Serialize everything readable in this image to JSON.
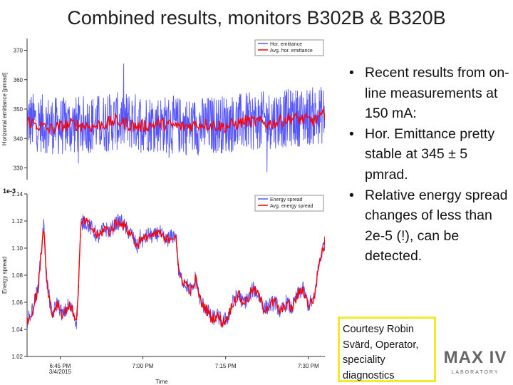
{
  "slide": {
    "title": "Combined results, monitors B302B & B320B",
    "bullets": [
      "Recent results from on-line measurements at 150 mA:",
      "Hor. Emittance pretty stable at 345 ± 5 pmrad.",
      "Relative energy spread changes of less than 2e-5 (!), can be detected."
    ],
    "courtesy": "Courtesy Robin Svärd, Operator, speciality diagnostics",
    "logo": {
      "text": "MAX IV",
      "sub": "LABORATORY",
      "color": "#666666"
    }
  },
  "chart_data": [
    {
      "type": "line",
      "ylabel": "Horizontal emittance [pmrad]",
      "xlabel": "",
      "ylim": [
        326,
        374
      ],
      "y_ticks": [
        "330",
        "340",
        "350",
        "360",
        "370"
      ],
      "x_range_minutes": [
        0,
        54
      ],
      "legend_position": "top-right",
      "series": [
        {
          "name": "Hor. emittance",
          "color": "#5555ff",
          "mean": 345,
          "noise_halfwidth": 10,
          "points": [
            [
              0,
              346
            ],
            [
              6,
              344
            ],
            [
              12,
              345
            ],
            [
              18,
              346
            ],
            [
              24,
              345
            ],
            [
              30,
              344
            ],
            [
              36,
              345
            ],
            [
              42,
              346
            ],
            [
              48,
              347
            ],
            [
              54,
              348
            ]
          ]
        },
        {
          "name": "Avg. hor. emittance",
          "color": "#ff0000",
          "points": [
            [
              0,
              346
            ],
            [
              4,
              343
            ],
            [
              8,
              345
            ],
            [
              12,
              344
            ],
            [
              16,
              346
            ],
            [
              20,
              344
            ],
            [
              24,
              345
            ],
            [
              28,
              344
            ],
            [
              32,
              345
            ],
            [
              36,
              344
            ],
            [
              40,
              346
            ],
            [
              44,
              345
            ],
            [
              48,
              347
            ],
            [
              52,
              346
            ],
            [
              54,
              348
            ]
          ]
        }
      ]
    },
    {
      "type": "line",
      "ylabel": "Energy spread",
      "xlabel": "Time",
      "multiplier": "1e-3",
      "ylim": [
        1.02,
        1.14
      ],
      "y_ticks": [
        "1.02",
        "1.04",
        "1.06",
        "1.08",
        "1.10",
        "1.12",
        "1.14"
      ],
      "x_ticks": [
        {
          "minute": 6,
          "lines": [
            "6:45 PM",
            "3/4/2015"
          ]
        },
        {
          "minute": 21,
          "lines": [
            "7:00 PM"
          ]
        },
        {
          "minute": 36,
          "lines": [
            "7:15 PM"
          ]
        },
        {
          "minute": 51,
          "lines": [
            "7:30 PM"
          ]
        }
      ],
      "legend_position": "top-right",
      "series": [
        {
          "name": "Energy spread",
          "color": "#5555ff",
          "points": [
            [
              0,
              1.045
            ],
            [
              1,
              1.055
            ],
            [
              2,
              1.07
            ],
            [
              3,
              1.118
            ],
            [
              3.6,
              1.075
            ],
            [
              4.5,
              1.05
            ],
            [
              5.5,
              1.06
            ],
            [
              6.5,
              1.05
            ],
            [
              7.5,
              1.058
            ],
            [
              8.5,
              1.052
            ],
            [
              9,
              1.045
            ],
            [
              9.8,
              1.118
            ],
            [
              10.5,
              1.12
            ],
            [
              12,
              1.113
            ],
            [
              13,
              1.108
            ],
            [
              14,
              1.115
            ],
            [
              15,
              1.112
            ],
            [
              16,
              1.118
            ],
            [
              17,
              1.12
            ],
            [
              18,
              1.114
            ],
            [
              19,
              1.11
            ],
            [
              20,
              1.1
            ],
            [
              20.5,
              1.108
            ],
            [
              21,
              1.105
            ],
            [
              22,
              1.11
            ],
            [
              23,
              1.108
            ],
            [
              24,
              1.112
            ],
            [
              25,
              1.105
            ],
            [
              26,
              1.108
            ],
            [
              27,
              1.11
            ],
            [
              27.5,
              1.08
            ],
            [
              28.5,
              1.075
            ],
            [
              29.5,
              1.07
            ],
            [
              30,
              1.068
            ],
            [
              30.5,
              1.078
            ],
            [
              31.5,
              1.06
            ],
            [
              32.5,
              1.055
            ],
            [
              33.5,
              1.048
            ],
            [
              34.5,
              1.05
            ],
            [
              35.5,
              1.045
            ],
            [
              36.5,
              1.05
            ],
            [
              37.5,
              1.062
            ],
            [
              38.5,
              1.065
            ],
            [
              39,
              1.06
            ],
            [
              40,
              1.062
            ],
            [
              41,
              1.07
            ],
            [
              42,
              1.065
            ],
            [
              43,
              1.055
            ],
            [
              44,
              1.058
            ],
            [
              45,
              1.06
            ],
            [
              46,
              1.052
            ],
            [
              47,
              1.06
            ],
            [
              48,
              1.055
            ],
            [
              49,
              1.065
            ],
            [
              50,
              1.07
            ],
            [
              51,
              1.058
            ],
            [
              52,
              1.062
            ],
            [
              53,
              1.09
            ],
            [
              54,
              1.105
            ]
          ]
        },
        {
          "name": "Avg. energy spread",
          "color": "#ff0000",
          "points": [
            [
              0,
              1.045
            ],
            [
              1,
              1.055
            ],
            [
              2,
              1.07
            ],
            [
              3,
              1.118
            ],
            [
              3.6,
              1.075
            ],
            [
              4.5,
              1.05
            ],
            [
              5.5,
              1.06
            ],
            [
              6.5,
              1.05
            ],
            [
              7.5,
              1.058
            ],
            [
              8.5,
              1.052
            ],
            [
              9,
              1.045
            ],
            [
              9.8,
              1.118
            ],
            [
              10.5,
              1.12
            ],
            [
              12,
              1.113
            ],
            [
              13,
              1.108
            ],
            [
              14,
              1.115
            ],
            [
              15,
              1.112
            ],
            [
              16,
              1.118
            ],
            [
              17,
              1.12
            ],
            [
              18,
              1.114
            ],
            [
              19,
              1.11
            ],
            [
              20,
              1.1
            ],
            [
              20.5,
              1.108
            ],
            [
              21,
              1.105
            ],
            [
              22,
              1.11
            ],
            [
              23,
              1.108
            ],
            [
              24,
              1.112
            ],
            [
              25,
              1.105
            ],
            [
              26,
              1.108
            ],
            [
              27,
              1.11
            ],
            [
              27.5,
              1.08
            ],
            [
              28.5,
              1.075
            ],
            [
              29.5,
              1.07
            ],
            [
              30,
              1.068
            ],
            [
              30.5,
              1.078
            ],
            [
              31.5,
              1.06
            ],
            [
              32.5,
              1.055
            ],
            [
              33.5,
              1.048
            ],
            [
              34.5,
              1.05
            ],
            [
              35.5,
              1.045
            ],
            [
              36.5,
              1.05
            ],
            [
              37.5,
              1.062
            ],
            [
              38.5,
              1.065
            ],
            [
              39,
              1.06
            ],
            [
              40,
              1.062
            ],
            [
              41,
              1.07
            ],
            [
              42,
              1.065
            ],
            [
              43,
              1.055
            ],
            [
              44,
              1.058
            ],
            [
              45,
              1.06
            ],
            [
              46,
              1.052
            ],
            [
              47,
              1.06
            ],
            [
              48,
              1.055
            ],
            [
              49,
              1.065
            ],
            [
              50,
              1.07
            ],
            [
              51,
              1.058
            ],
            [
              52,
              1.062
            ],
            [
              53,
              1.09
            ],
            [
              54,
              1.105
            ]
          ]
        }
      ]
    }
  ]
}
